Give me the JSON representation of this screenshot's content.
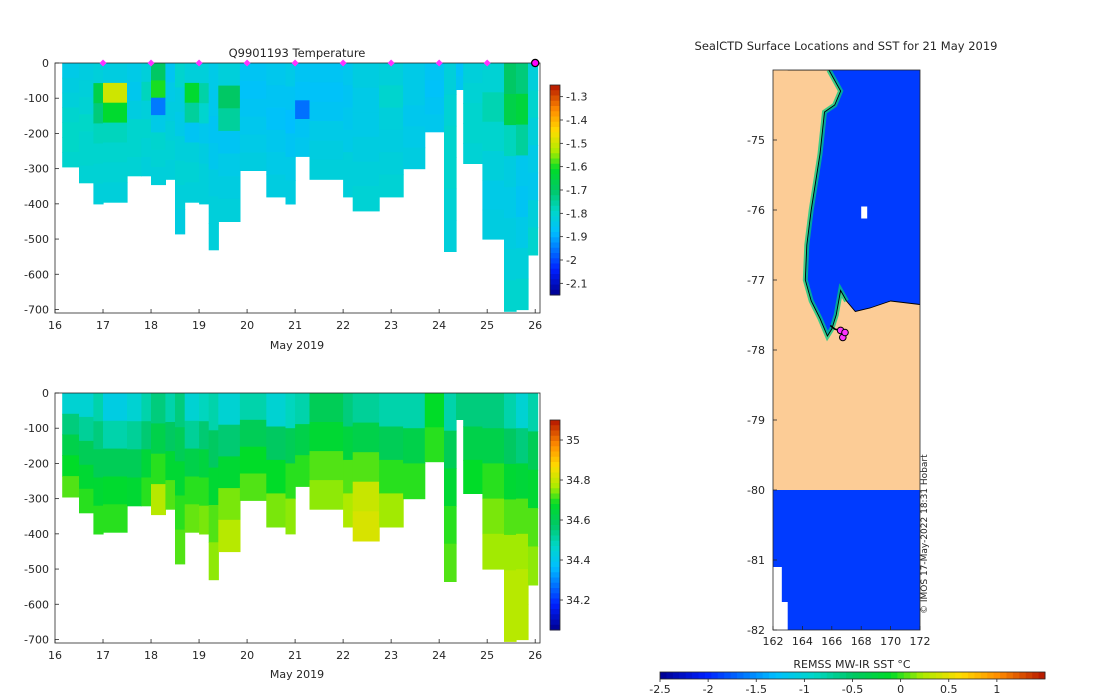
{
  "chart_data": [
    {
      "type": "heatmap",
      "title": "Q9901193  Temperature",
      "xlabel": "May 2019",
      "ylabel": "",
      "x_ticks": [
        "16",
        "17",
        "18",
        "19",
        "20",
        "21",
        "22",
        "23",
        "24",
        "25",
        "26"
      ],
      "y_ticks": [
        "0",
        "-100",
        "-200",
        "-300",
        "-400",
        "-500",
        "-600",
        "-700"
      ],
      "xlim": [
        16,
        26.1
      ],
      "ylim": [
        -710,
        0
      ],
      "colorbar_ticks": [
        "-1.3",
        "-1.4",
        "-1.5",
        "-1.6",
        "-1.7",
        "-1.8",
        "-1.9",
        "-2",
        "-2.1"
      ],
      "clim": [
        -2.15,
        -1.25
      ],
      "surface_markers_x": [
        17,
        18,
        19,
        20,
        21,
        22,
        23,
        24,
        25,
        26
      ],
      "profiles": [
        {
          "x0": 16.15,
          "x1": 16.5,
          "bottom": -295,
          "vals": [
            -1.84,
            -1.83,
            -1.82,
            -1.8,
            -1.79,
            -1.79,
            -1.8
          ]
        },
        {
          "x0": 16.5,
          "x1": 16.8,
          "bottom": -340,
          "vals": [
            -1.83,
            -1.82,
            -1.81,
            -1.79,
            -1.8,
            -1.8,
            -1.81
          ]
        },
        {
          "x0": 16.8,
          "x1": 17.0,
          "bottom": -400,
          "vals": [
            -1.82,
            -1.66,
            -1.72,
            -1.78,
            -1.8,
            -1.81,
            -1.82
          ]
        },
        {
          "x0": 17.0,
          "x1": 17.5,
          "bottom": -395,
          "vals": [
            -1.83,
            -1.5,
            -1.62,
            -1.78,
            -1.8,
            -1.81,
            -1.82
          ]
        },
        {
          "x0": 17.5,
          "x1": 17.8,
          "bottom": -320,
          "vals": [
            -1.84,
            -1.85,
            -1.83,
            -1.8,
            -1.8,
            -1.81
          ]
        },
        {
          "x0": 17.8,
          "x1": 18.0,
          "bottom": -320,
          "vals": [
            -1.82,
            -1.78,
            -1.82,
            -1.8,
            -1.81,
            -1.82
          ]
        },
        {
          "x0": 18.0,
          "x1": 18.3,
          "bottom": -345,
          "vals": [
            -1.7,
            -1.6,
            -1.95,
            -1.84,
            -1.8,
            -1.81,
            -1.82
          ]
        },
        {
          "x0": 18.3,
          "x1": 18.5,
          "bottom": -330,
          "vals": [
            -1.86,
            -1.84,
            -1.83,
            -1.82,
            -1.81,
            -1.82
          ]
        },
        {
          "x0": 18.5,
          "x1": 18.7,
          "bottom": -485,
          "vals": [
            -1.8,
            -1.83,
            -1.84,
            -1.82,
            -1.81,
            -1.82,
            -1.83
          ]
        },
        {
          "x0": 18.7,
          "x1": 19.0,
          "bottom": -395,
          "vals": [
            -1.82,
            -1.62,
            -1.75,
            -1.86,
            -1.82,
            -1.81,
            -1.82
          ]
        },
        {
          "x0": 19.0,
          "x1": 19.2,
          "bottom": -400,
          "vals": [
            -1.82,
            -1.76,
            -1.8,
            -1.85,
            -1.83,
            -1.82,
            -1.82
          ]
        },
        {
          "x0": 19.2,
          "x1": 19.4,
          "bottom": -530,
          "vals": [
            -1.84,
            -1.85,
            -1.86,
            -1.85,
            -1.83,
            -1.82,
            -1.82
          ]
        },
        {
          "x0": 19.4,
          "x1": 19.85,
          "bottom": -450,
          "vals": [
            -1.82,
            -1.7,
            -1.75,
            -1.86,
            -1.84,
            -1.83,
            -1.82
          ]
        },
        {
          "x0": 19.85,
          "x1": 20.4,
          "bottom": -305,
          "vals": [
            -1.86,
            -1.87,
            -1.86,
            -1.85,
            -1.84,
            -1.83
          ]
        },
        {
          "x0": 20.4,
          "x1": 20.8,
          "bottom": -380,
          "vals": [
            -1.85,
            -1.86,
            -1.87,
            -1.85,
            -1.84,
            -1.83
          ]
        },
        {
          "x0": 20.8,
          "x1": 21.0,
          "bottom": -400,
          "vals": [
            -1.84,
            -1.86,
            -1.88,
            -1.86,
            -1.84,
            -1.83
          ]
        },
        {
          "x0": 21.0,
          "x1": 21.3,
          "bottom": -265,
          "vals": [
            -1.86,
            -1.87,
            -1.96,
            -1.86,
            -1.85
          ]
        },
        {
          "x0": 21.3,
          "x1": 22.0,
          "bottom": -330,
          "vals": [
            -1.86,
            -1.87,
            -1.86,
            -1.84,
            -1.83,
            -1.82
          ]
        },
        {
          "x0": 22.0,
          "x1": 22.2,
          "bottom": -380,
          "vals": [
            -1.85,
            -1.86,
            -1.85,
            -1.84,
            -1.82,
            -1.82
          ]
        },
        {
          "x0": 22.2,
          "x1": 22.75,
          "bottom": -420,
          "vals": [
            -1.83,
            -1.84,
            -1.84,
            -1.83,
            -1.82,
            -1.81
          ]
        },
        {
          "x0": 22.75,
          "x1": 23.25,
          "bottom": -380,
          "vals": [
            -1.82,
            -1.8,
            -1.82,
            -1.83,
            -1.82,
            -1.81
          ]
        },
        {
          "x0": 23.25,
          "x1": 23.7,
          "bottom": -300,
          "vals": [
            -1.84,
            -1.84,
            -1.85,
            -1.84,
            -1.83
          ]
        },
        {
          "x0": 23.7,
          "x1": 24.1,
          "bottom": -195,
          "vals": [
            -1.86,
            -1.87,
            -1.86,
            -1.85
          ]
        },
        {
          "x0": 24.1,
          "x1": 24.35,
          "bottom": -535,
          "vals": [
            -1.82,
            -1.81,
            -1.8,
            -1.8,
            -1.81,
            -1.82
          ]
        },
        {
          "x0": 24.35,
          "x1": 24.5,
          "bottom": -75,
          "vals": [
            -1.87,
            -1.86
          ]
        },
        {
          "x0": 24.5,
          "x1": 24.9,
          "bottom": -285,
          "vals": [
            -1.82,
            -1.81,
            -1.8,
            -1.8,
            -1.81
          ]
        },
        {
          "x0": 24.9,
          "x1": 25.35,
          "bottom": -500,
          "vals": [
            -1.81,
            -1.77,
            -1.8,
            -1.82,
            -1.84,
            -1.83
          ]
        },
        {
          "x0": 25.35,
          "x1": 25.6,
          "bottom": -705,
          "vals": [
            -1.7,
            -1.66,
            -1.78,
            -1.83,
            -1.84,
            -1.83,
            -1.82,
            -1.8
          ]
        },
        {
          "x0": 25.6,
          "x1": 25.85,
          "bottom": -700,
          "vals": [
            -1.72,
            -1.64,
            -1.75,
            -1.85,
            -1.86,
            -1.84,
            -1.82,
            -1.8
          ]
        },
        {
          "x0": 25.85,
          "x1": 26.05,
          "bottom": -545,
          "vals": [
            -1.82,
            -1.8,
            -1.82,
            -1.84,
            -1.85,
            -1.82,
            -1.8
          ]
        }
      ]
    },
    {
      "type": "heatmap",
      "title": "",
      "xlabel": "May 2019",
      "ylabel": "",
      "x_ticks": [
        "16",
        "17",
        "18",
        "19",
        "20",
        "21",
        "22",
        "23",
        "24",
        "25",
        "26"
      ],
      "y_ticks": [
        "0",
        "-100",
        "-200",
        "-300",
        "-400",
        "-500",
        "-600",
        "-700"
      ],
      "xlim": [
        16,
        26.1
      ],
      "ylim": [
        -710,
        0
      ],
      "colorbar_ticks": [
        "35",
        "34.8",
        "34.6",
        "34.4",
        "34.2"
      ],
      "clim": [
        34.05,
        35.1
      ],
      "profiles": [
        {
          "x0": 16.15,
          "x1": 16.5,
          "bottom": -295,
          "vals": [
            34.45,
            34.55,
            34.62,
            34.68,
            34.72
          ]
        },
        {
          "x0": 16.5,
          "x1": 16.8,
          "bottom": -340,
          "vals": [
            34.45,
            34.52,
            34.6,
            34.66,
            34.7
          ]
        },
        {
          "x0": 16.8,
          "x1": 17.0,
          "bottom": -400,
          "vals": [
            34.5,
            34.55,
            34.6,
            34.66,
            34.7
          ]
        },
        {
          "x0": 17.0,
          "x1": 17.5,
          "bottom": -395,
          "vals": [
            34.42,
            34.5,
            34.6,
            34.67,
            34.7
          ]
        },
        {
          "x0": 17.5,
          "x1": 17.8,
          "bottom": -320,
          "vals": [
            34.45,
            34.52,
            34.6,
            34.66
          ]
        },
        {
          "x0": 17.8,
          "x1": 18.0,
          "bottom": -320,
          "vals": [
            34.5,
            34.56,
            34.65,
            34.7
          ]
        },
        {
          "x0": 18.0,
          "x1": 18.3,
          "bottom": -345,
          "vals": [
            34.55,
            34.62,
            34.7,
            34.78
          ]
        },
        {
          "x0": 18.3,
          "x1": 18.5,
          "bottom": -330,
          "vals": [
            34.5,
            34.58,
            34.66,
            34.72
          ]
        },
        {
          "x0": 18.5,
          "x1": 18.7,
          "bottom": -485,
          "vals": [
            34.55,
            34.6,
            34.66,
            34.7,
            34.72
          ]
        },
        {
          "x0": 18.7,
          "x1": 19.0,
          "bottom": -395,
          "vals": [
            34.45,
            34.52,
            34.62,
            34.7,
            34.73
          ]
        },
        {
          "x0": 19.0,
          "x1": 19.2,
          "bottom": -400,
          "vals": [
            34.48,
            34.56,
            34.64,
            34.7,
            34.74
          ]
        },
        {
          "x0": 19.2,
          "x1": 19.4,
          "bottom": -530,
          "vals": [
            34.5,
            34.58,
            34.66,
            34.72,
            34.75
          ]
        },
        {
          "x0": 19.4,
          "x1": 19.85,
          "bottom": -450,
          "vals": [
            34.45,
            34.56,
            34.66,
            34.74,
            34.78
          ]
        },
        {
          "x0": 19.85,
          "x1": 20.4,
          "bottom": -305,
          "vals": [
            34.5,
            34.6,
            34.68,
            34.72
          ]
        },
        {
          "x0": 20.4,
          "x1": 20.8,
          "bottom": -380,
          "vals": [
            34.45,
            34.58,
            34.68,
            34.74
          ]
        },
        {
          "x0": 20.8,
          "x1": 21.0,
          "bottom": -400,
          "vals": [
            34.48,
            34.6,
            34.7,
            34.75
          ]
        },
        {
          "x0": 21.0,
          "x1": 21.3,
          "bottom": -265,
          "vals": [
            34.5,
            34.62,
            34.7
          ]
        },
        {
          "x0": 21.3,
          "x1": 22.0,
          "bottom": -330,
          "vals": [
            34.6,
            34.66,
            34.72,
            34.75
          ]
        },
        {
          "x0": 22.0,
          "x1": 22.2,
          "bottom": -380,
          "vals": [
            34.55,
            34.64,
            34.72,
            34.77
          ]
        },
        {
          "x0": 22.2,
          "x1": 22.75,
          "bottom": -420,
          "vals": [
            34.52,
            34.62,
            34.72,
            34.8,
            34.82
          ]
        },
        {
          "x0": 22.75,
          "x1": 23.25,
          "bottom": -380,
          "vals": [
            34.5,
            34.6,
            34.7,
            34.76
          ]
        },
        {
          "x0": 23.25,
          "x1": 23.7,
          "bottom": -300,
          "vals": [
            34.5,
            34.62,
            34.7
          ]
        },
        {
          "x0": 23.7,
          "x1": 24.1,
          "bottom": -195,
          "vals": [
            34.68,
            34.7
          ]
        },
        {
          "x0": 24.1,
          "x1": 24.35,
          "bottom": -535,
          "vals": [
            34.5,
            34.6,
            34.66,
            34.7,
            34.72
          ]
        },
        {
          "x0": 24.35,
          "x1": 24.5,
          "bottom": -75,
          "vals": [
            34.55
          ]
        },
        {
          "x0": 24.5,
          "x1": 24.9,
          "bottom": -285,
          "vals": [
            34.55,
            34.62,
            34.68
          ]
        },
        {
          "x0": 24.9,
          "x1": 25.35,
          "bottom": -500,
          "vals": [
            34.55,
            34.62,
            34.7,
            34.74,
            34.76
          ]
        },
        {
          "x0": 25.35,
          "x1": 25.6,
          "bottom": -705,
          "vals": [
            34.5,
            34.58,
            34.66,
            34.72,
            34.76,
            34.78,
            34.78
          ]
        },
        {
          "x0": 25.6,
          "x1": 25.85,
          "bottom": -700,
          "vals": [
            34.45,
            34.55,
            34.65,
            34.72,
            34.76,
            34.78,
            34.78
          ]
        },
        {
          "x0": 25.85,
          "x1": 26.05,
          "bottom": -545,
          "vals": [
            34.5,
            34.6,
            34.66,
            34.72,
            34.75
          ]
        }
      ]
    },
    {
      "type": "heatmap",
      "title": "SealCTD Surface Locations and SST for 21 May 2019",
      "xlabel": "",
      "colorbar_label": "REMSS MW-IR SST °C",
      "x_ticks": [
        "162",
        "164",
        "166",
        "168",
        "170",
        "172"
      ],
      "y_ticks": [
        "-75",
        "-76",
        "-77",
        "-78",
        "-79",
        "-80",
        "-81",
        "-82"
      ],
      "xlim": [
        162,
        172
      ],
      "ylim": [
        -82,
        -74
      ],
      "colorbar_ticks": [
        "-2.5",
        "-2",
        "-1.5",
        "-1",
        "-0.5",
        "0",
        "0.5",
        "1"
      ],
      "clim": [
        -2.5,
        1.5
      ],
      "sea_sst": -1.9,
      "credit": "© IMOS 17-May-2022 18:31 Hobart",
      "ice_shelf_edge_lat": -80,
      "coastline": [
        [
          163.0,
          -74.0
        ],
        [
          165.8,
          -74.0
        ],
        [
          166.6,
          -74.3
        ],
        [
          166.2,
          -74.5
        ],
        [
          165.5,
          -74.6
        ],
        [
          165.2,
          -75.2
        ],
        [
          164.9,
          -75.6
        ],
        [
          164.6,
          -76.0
        ],
        [
          164.3,
          -76.5
        ],
        [
          164.2,
          -77.0
        ],
        [
          164.6,
          -77.3
        ],
        [
          165.2,
          -77.55
        ],
        [
          165.7,
          -77.8
        ],
        [
          166.0,
          -77.7
        ],
        [
          166.3,
          -77.5
        ],
        [
          166.6,
          -77.15
        ],
        [
          167.0,
          -77.3
        ],
        [
          167.6,
          -77.45
        ],
        [
          168.6,
          -77.4
        ],
        [
          170.0,
          -77.3
        ],
        [
          172.0,
          -77.35
        ]
      ],
      "seal_track": [
        [
          165.9,
          -77.65
        ],
        [
          166.2,
          -77.7
        ],
        [
          166.5,
          -77.72
        ],
        [
          166.7,
          -77.75
        ],
        [
          166.8,
          -77.8
        ]
      ],
      "seal_positions": [
        [
          166.6,
          -77.72
        ],
        [
          166.75,
          -77.82
        ],
        [
          166.9,
          -77.75
        ]
      ]
    }
  ]
}
